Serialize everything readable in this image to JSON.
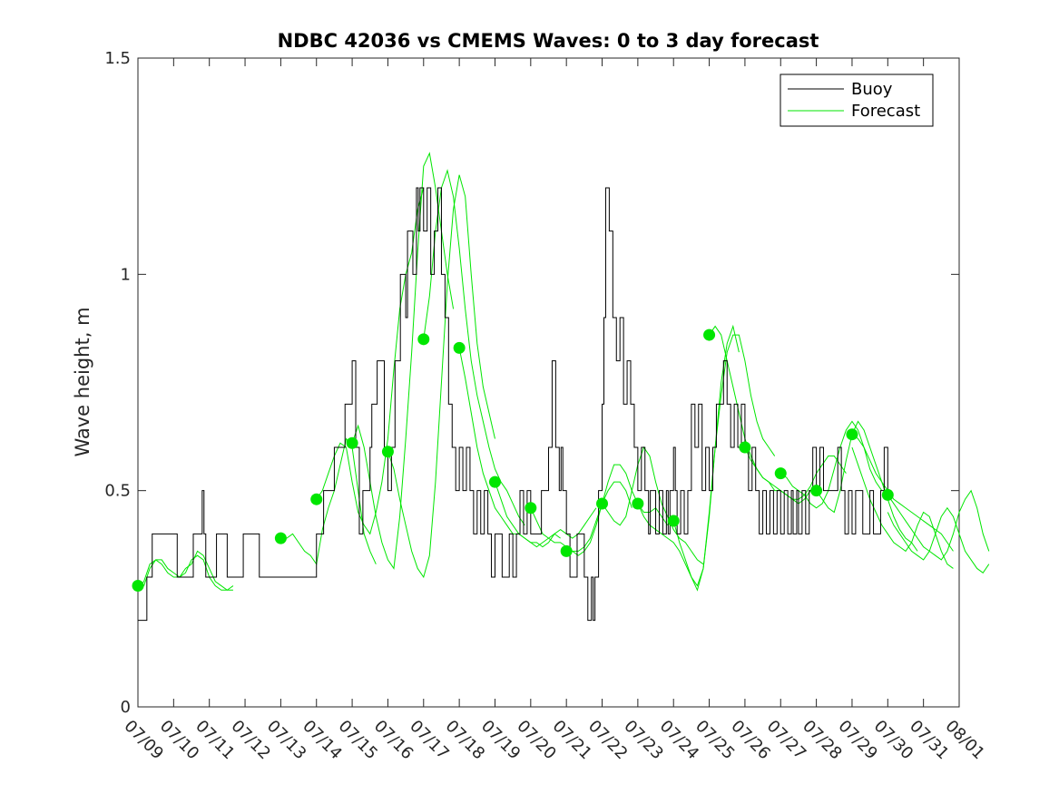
{
  "chart_data": {
    "type": "line",
    "title": "NDBC 42036 vs CMEMS Waves: 0 to 3 day forecast",
    "xlabel": "",
    "ylabel": "Wave height, m",
    "xlim": [
      "07/09",
      "08/01"
    ],
    "ylim": [
      0,
      1.5
    ],
    "x_tick_labels": [
      "07/09",
      "07/10",
      "07/11",
      "07/12",
      "07/13",
      "07/14",
      "07/15",
      "07/16",
      "07/17",
      "07/18",
      "07/19",
      "07/20",
      "07/21",
      "07/22",
      "07/23",
      "07/24",
      "07/25",
      "07/26",
      "07/27",
      "07/28",
      "07/29",
      "07/30",
      "07/31",
      "08/01"
    ],
    "y_ticks": [
      0,
      0.5,
      1,
      1.5
    ],
    "y_tick_labels": [
      "0",
      "0.5",
      "1",
      "1.5"
    ],
    "grid": false,
    "legend_position": "top-right",
    "legend": [
      {
        "label": "Buoy",
        "color": "#000000"
      },
      {
        "label": "Forecast",
        "color": "#00e600"
      }
    ],
    "buoy": {
      "name": "Buoy",
      "color": "#000000",
      "day_offsets": [
        0,
        0.25,
        0.25,
        0.4,
        0.4,
        1.1,
        1.1,
        1.55,
        1.55,
        1.8,
        1.8,
        1.85,
        1.85,
        1.9,
        1.9,
        2.2,
        2.2,
        2.5,
        2.5,
        2.95,
        2.95,
        3.4,
        3.4,
        5.0,
        5.0,
        5.2,
        5.2,
        5.5,
        5.5,
        5.8,
        5.8,
        6.0,
        6.0,
        6.1,
        6.1,
        6.2,
        6.2,
        6.3,
        6.3,
        6.5,
        6.5,
        6.55,
        6.55,
        6.7,
        6.7,
        6.9,
        6.9,
        7.0,
        7.0,
        7.1,
        7.1,
        7.2,
        7.2,
        7.35,
        7.35,
        7.5,
        7.5,
        7.55,
        7.55,
        7.7,
        7.7,
        7.8,
        7.8,
        7.85,
        7.85,
        7.9,
        7.9,
        8.0,
        8.0,
        8.1,
        8.1,
        8.2,
        8.2,
        8.3,
        8.3,
        8.4,
        8.4,
        8.5,
        8.5,
        8.6,
        8.6,
        8.7,
        8.7,
        8.8,
        8.8,
        8.9,
        8.9,
        9.0,
        9.0,
        9.1,
        9.1,
        9.2,
        9.2,
        9.3,
        9.3,
        9.4,
        9.4,
        9.5,
        9.5,
        9.6,
        9.6,
        9.7,
        9.7,
        9.8,
        9.8,
        9.9,
        9.9,
        10.0,
        10.0,
        10.2,
        10.2,
        10.4,
        10.4,
        10.5,
        10.5,
        10.6,
        10.6,
        10.7,
        10.7,
        10.8,
        10.8,
        10.9,
        10.9,
        11.0,
        11.0,
        11.3,
        11.3,
        11.5,
        11.5,
        11.6,
        11.6,
        11.7,
        11.7,
        11.8,
        11.8,
        11.85,
        11.85,
        11.9,
        11.9,
        12.0,
        12.0,
        12.1,
        12.1,
        12.3,
        12.3,
        12.5,
        12.5,
        12.6,
        12.6,
        12.7,
        12.7,
        12.75,
        12.75,
        12.8,
        12.8,
        12.9,
        12.9,
        13.0,
        13.0,
        13.05,
        13.05,
        13.1,
        13.1,
        13.2,
        13.2,
        13.3,
        13.3,
        13.4,
        13.4,
        13.5,
        13.5,
        13.6,
        13.6,
        13.7,
        13.7,
        13.8,
        13.8,
        13.9,
        13.9,
        14.0,
        14.0,
        14.1,
        14.1,
        14.2,
        14.2,
        14.3,
        14.3,
        14.35,
        14.35,
        14.5,
        14.5,
        14.6,
        14.6,
        14.7,
        14.7,
        14.8,
        14.8,
        14.85,
        14.85,
        14.9,
        14.9,
        15.0,
        15.0,
        15.05,
        15.05,
        15.1,
        15.1,
        15.2,
        15.2,
        15.3,
        15.3,
        15.4,
        15.4,
        15.5,
        15.5,
        15.6,
        15.6,
        15.7,
        15.7,
        15.8,
        15.8,
        15.9,
        15.9,
        16.0,
        16.0,
        16.1,
        16.1,
        16.2,
        16.2,
        16.4,
        16.4,
        16.5,
        16.5,
        16.6,
        16.6,
        16.7,
        16.7,
        16.8,
        16.8,
        16.9,
        16.9,
        17.0,
        17.0,
        17.1,
        17.1,
        17.2,
        17.2,
        17.3,
        17.3,
        17.4,
        17.4,
        17.5,
        17.5,
        17.6,
        17.6,
        17.7,
        17.7,
        17.8,
        17.8,
        17.9,
        17.9,
        18.0,
        18.0,
        18.1,
        18.1,
        18.2,
        18.2,
        18.3,
        18.3,
        18.35,
        18.35,
        18.45,
        18.45,
        18.5,
        18.5,
        18.6,
        18.6,
        18.7,
        18.7,
        18.8,
        18.8,
        18.9,
        18.9,
        19.0,
        19.0,
        19.1,
        19.1,
        19.2,
        19.2,
        19.4,
        19.4,
        19.6,
        19.6,
        19.7,
        19.7,
        19.8,
        19.8,
        19.9,
        19.9,
        20.0,
        20.0,
        20.1,
        20.1,
        20.3,
        20.3,
        20.5,
        20.5,
        20.6,
        20.6,
        20.8,
        20.8,
        20.9,
        20.9,
        21.0,
        21.0,
        21.1,
        21.1,
        21.2,
        21.2,
        21.3,
        21.3,
        21.4,
        21.4,
        21.5,
        21.5,
        21.6,
        21.6,
        22.0,
        22.0,
        22.2,
        22.2,
        22.3,
        22.3,
        22.6,
        22.6,
        23.0
      ],
      "values": [
        0.2,
        0.2,
        0.3,
        0.3,
        0.4,
        0.4,
        0.3,
        0.3,
        0.4,
        0.4,
        0.5,
        0.5,
        0.4,
        0.4,
        0.3,
        0.3,
        0.4,
        0.4,
        0.3,
        0.3,
        0.4,
        0.4,
        0.3,
        0.3,
        0.4,
        0.4,
        0.5,
        0.5,
        0.6,
        0.6,
        0.7,
        0.7,
        0.8,
        0.8,
        0.6,
        0.6,
        0.4,
        0.4,
        0.5,
        0.5,
        0.6,
        0.6,
        0.7,
        0.7,
        0.8,
        0.8,
        0.6,
        0.6,
        0.5,
        0.5,
        0.6,
        0.6,
        0.8,
        0.8,
        1.0,
        1.0,
        0.9,
        0.9,
        1.1,
        1.1,
        1.0,
        1.0,
        1.2,
        1.2,
        1.1,
        1.1,
        1.2,
        1.2,
        1.1,
        1.1,
        1.2,
        1.2,
        1.0,
        1.0,
        1.1,
        1.1,
        1.2,
        1.2,
        1.0,
        1.0,
        0.9,
        0.9,
        0.7,
        0.7,
        0.6,
        0.6,
        0.5,
        0.5,
        0.6,
        0.6,
        0.5,
        0.5,
        0.6,
        0.6,
        0.5,
        0.5,
        0.4,
        0.4,
        0.5,
        0.5,
        0.4,
        0.4,
        0.5,
        0.5,
        0.4,
        0.4,
        0.3,
        0.3,
        0.4,
        0.4,
        0.3,
        0.3,
        0.4,
        0.4,
        0.3,
        0.3,
        0.4,
        0.4,
        0.5,
        0.5,
        0.4,
        0.4,
        0.5,
        0.5,
        0.4,
        0.4,
        0.5,
        0.5,
        0.6,
        0.6,
        0.8,
        0.8,
        0.6,
        0.6,
        0.5,
        0.5,
        0.6,
        0.6,
        0.5,
        0.5,
        0.4,
        0.4,
        0.3,
        0.3,
        0.4,
        0.4,
        0.3,
        0.3,
        0.2,
        0.2,
        0.3,
        0.3,
        0.2,
        0.2,
        0.3,
        0.3,
        0.5,
        0.5,
        0.7,
        0.7,
        0.9,
        0.9,
        1.2,
        1.2,
        1.1,
        1.1,
        0.9,
        0.9,
        0.8,
        0.8,
        0.9,
        0.9,
        0.7,
        0.7,
        0.8,
        0.8,
        0.7,
        0.7,
        0.6,
        0.6,
        0.5,
        0.5,
        0.6,
        0.6,
        0.5,
        0.5,
        0.4,
        0.4,
        0.5,
        0.5,
        0.4,
        0.4,
        0.5,
        0.5,
        0.4,
        0.4,
        0.5,
        0.5,
        0.4,
        0.4,
        0.5,
        0.5,
        0.6,
        0.6,
        0.5,
        0.5,
        0.4,
        0.4,
        0.5,
        0.5,
        0.4,
        0.4,
        0.5,
        0.5,
        0.7,
        0.7,
        0.6,
        0.6,
        0.7,
        0.7,
        0.5,
        0.5,
        0.6,
        0.6,
        0.5,
        0.5,
        0.6,
        0.6,
        0.7,
        0.7,
        0.8,
        0.8,
        0.7,
        0.7,
        0.6,
        0.6,
        0.7,
        0.7,
        0.6,
        0.6,
        0.7,
        0.7,
        0.6,
        0.6,
        0.5,
        0.5,
        0.6,
        0.6,
        0.5,
        0.5,
        0.4,
        0.4,
        0.5,
        0.5,
        0.4,
        0.4,
        0.5,
        0.5,
        0.4,
        0.4,
        0.5,
        0.5,
        0.4,
        0.4,
        0.5,
        0.5,
        0.4,
        0.4,
        0.5,
        0.5,
        0.4,
        0.4,
        0.5,
        0.5,
        0.4,
        0.4,
        0.5,
        0.5,
        0.4,
        0.4,
        0.5,
        0.5,
        0.6,
        0.6,
        0.5,
        0.5,
        0.6,
        0.6,
        0.5,
        0.5,
        0.5,
        0.5,
        0.6,
        0.6,
        0.5,
        0.5,
        0.4,
        0.4,
        0.5,
        0.5,
        0.4,
        0.4,
        0.5,
        0.5,
        0.4,
        0.4,
        0.5,
        0.5,
        0.4,
        0.4,
        0.5,
        0.5,
        0.6,
        0.6,
        0.5,
        0.5,
        0.5
      ]
    },
    "forecast_series": [
      {
        "name": "Forecast",
        "color": "#00e600",
        "start_day": 0,
        "values": [
          0.27,
          0.29,
          0.33,
          0.34,
          0.33,
          0.31,
          0.3,
          0.3,
          0.31,
          0.34,
          0.35,
          0.34,
          0.3,
          0.28,
          0.27,
          0.27,
          0.27
        ]
      },
      {
        "color": "#00e600",
        "start_day": 0,
        "values": [
          0.27,
          0.28,
          0.32,
          0.34,
          0.34,
          0.32,
          0.31,
          0.3,
          0.32,
          0.33,
          0.36,
          0.35,
          0.32,
          0.29,
          0.28,
          0.27,
          0.28
        ]
      },
      {
        "color": "#00e600",
        "start_day": 4,
        "values": [
          0.39,
          0.39,
          0.4,
          0.38,
          0.36,
          0.35,
          0.33,
          0.41,
          0.46,
          0.5,
          0.56,
          0.62,
          0.6,
          0.5,
          0.4,
          0.36,
          0.33
        ]
      },
      {
        "color": "#00e600",
        "start_day": 5,
        "values": [
          0.48,
          0.5,
          0.54,
          0.58,
          0.61,
          0.6,
          0.52,
          0.45,
          0.42,
          0.4,
          0.45,
          0.52,
          0.62,
          0.78,
          0.92,
          1.0,
          1.05,
          1.15,
          1.2
        ]
      },
      {
        "color": "#00e600",
        "start_day": 6,
        "values": [
          0.61,
          0.65,
          0.6,
          0.52,
          0.44,
          0.38,
          0.34,
          0.32,
          0.44,
          0.62,
          0.82,
          1.05,
          1.25,
          1.28,
          1.2,
          1.1,
          1.0,
          0.92
        ]
      },
      {
        "color": "#00e600",
        "start_day": 7,
        "values": [
          0.59,
          0.55,
          0.48,
          0.42,
          0.36,
          0.32,
          0.3,
          0.35,
          0.52,
          0.75,
          0.98,
          1.15,
          1.23,
          1.18,
          1.0,
          0.84,
          0.74,
          0.68,
          0.62
        ]
      },
      {
        "color": "#00e600",
        "start_day": 8,
        "values": [
          0.85,
          0.95,
          1.1,
          1.2,
          1.24,
          1.18,
          1.06,
          0.92,
          0.8,
          0.72,
          0.66,
          0.6,
          0.55,
          0.52,
          0.5,
          0.47,
          0.44,
          0.42
        ]
      },
      {
        "color": "#00e600",
        "start_day": 9,
        "values": [
          0.83,
          0.76,
          0.68,
          0.6,
          0.54,
          0.5,
          0.46,
          0.44,
          0.42,
          0.4,
          0.4,
          0.39,
          0.38,
          0.38,
          0.37,
          0.38,
          0.4,
          0.39
        ]
      },
      {
        "color": "#00e600",
        "start_day": 10,
        "values": [
          0.52,
          0.48,
          0.44,
          0.42,
          0.4,
          0.39,
          0.38,
          0.37,
          0.38,
          0.39,
          0.4,
          0.41,
          0.4,
          0.39,
          0.4,
          0.42,
          0.44,
          0.46
        ]
      },
      {
        "color": "#00e600",
        "start_day": 11,
        "values": [
          0.46,
          0.43,
          0.4,
          0.39,
          0.38,
          0.38,
          0.37,
          0.36,
          0.36,
          0.37,
          0.39,
          0.43,
          0.47,
          0.5,
          0.52,
          0.52,
          0.5,
          0.46
        ]
      },
      {
        "color": "#00e600",
        "start_day": 12,
        "values": [
          0.36,
          0.36,
          0.35,
          0.36,
          0.38,
          0.42,
          0.47,
          0.52,
          0.56,
          0.56,
          0.54,
          0.5,
          0.47,
          0.45,
          0.45,
          0.46,
          0.44,
          0.42
        ]
      },
      {
        "color": "#00e600",
        "start_day": 13,
        "values": [
          0.47,
          0.45,
          0.43,
          0.42,
          0.44,
          0.5,
          0.56,
          0.6,
          0.58,
          0.52,
          0.47,
          0.44,
          0.41,
          0.39,
          0.38,
          0.36,
          0.34,
          0.33
        ]
      },
      {
        "color": "#00e600",
        "start_day": 14,
        "values": [
          0.47,
          0.44,
          0.42,
          0.41,
          0.4,
          0.39,
          0.38,
          0.36,
          0.33,
          0.3,
          0.28,
          0.32,
          0.44,
          0.6,
          0.75,
          0.84,
          0.88,
          0.82
        ]
      },
      {
        "color": "#00e600",
        "start_day": 15,
        "values": [
          0.43,
          0.38,
          0.34,
          0.3,
          0.27,
          0.32,
          0.45,
          0.6,
          0.72,
          0.82,
          0.86,
          0.86,
          0.8,
          0.72,
          0.66,
          0.62,
          0.6,
          0.58
        ]
      },
      {
        "color": "#00e600",
        "start_day": 16,
        "values": [
          0.86,
          0.88,
          0.86,
          0.8,
          0.74,
          0.68,
          0.62,
          0.58,
          0.55,
          0.53,
          0.52,
          0.5,
          0.5,
          0.49,
          0.48,
          0.47,
          0.48,
          0.5
        ]
      },
      {
        "color": "#00e600",
        "start_day": 17,
        "values": [
          0.6,
          0.57,
          0.55,
          0.53,
          0.52,
          0.51,
          0.5,
          0.49,
          0.48,
          0.48,
          0.49,
          0.51,
          0.54,
          0.56,
          0.58,
          0.58,
          0.56,
          0.54
        ]
      },
      {
        "color": "#00e600",
        "start_day": 18,
        "values": [
          0.54,
          0.53,
          0.51,
          0.5,
          0.49,
          0.47,
          0.46,
          0.47,
          0.5,
          0.55,
          0.6,
          0.64,
          0.66,
          0.64,
          0.6,
          0.55,
          0.52,
          0.5
        ]
      },
      {
        "color": "#00e600",
        "start_day": 19,
        "values": [
          0.5,
          0.48,
          0.46,
          0.45,
          0.5,
          0.57,
          0.63,
          0.66,
          0.64,
          0.6,
          0.56,
          0.52,
          0.48,
          0.44,
          0.41,
          0.39,
          0.38,
          0.36
        ]
      },
      {
        "color": "#00e600",
        "start_day": 20,
        "values": [
          0.63,
          0.62,
          0.6,
          0.57,
          0.54,
          0.52,
          0.5,
          0.48,
          0.47,
          0.46,
          0.45,
          0.44,
          0.43,
          0.42,
          0.41,
          0.4,
          0.38,
          0.36
        ]
      },
      {
        "color": "#00e600",
        "start_day": 21,
        "values": [
          0.49,
          0.47,
          0.45,
          0.43,
          0.41,
          0.39,
          0.37,
          0.36,
          0.35,
          0.34,
          0.36,
          0.4,
          0.45,
          0.48,
          0.5,
          0.46,
          0.4,
          0.36
        ]
      },
      {
        "color": "#00e600",
        "start_day": 20,
        "values": [
          0.6,
          0.56,
          0.52,
          0.48,
          0.45,
          0.42,
          0.4,
          0.38,
          0.37,
          0.36,
          0.38,
          0.42,
          0.45,
          0.44,
          0.4,
          0.36,
          0.33,
          0.32
        ]
      },
      {
        "color": "#00e600",
        "start_day": 21,
        "values": [
          0.45,
          0.42,
          0.4,
          0.38,
          0.36,
          0.35,
          0.34,
          0.36,
          0.4,
          0.44,
          0.46,
          0.44,
          0.4,
          0.36,
          0.34,
          0.32,
          0.31,
          0.33
        ]
      }
    ],
    "forecast_markers": {
      "color": "#00e600",
      "day_offsets": [
        0,
        4,
        5,
        6,
        7,
        8,
        9,
        10,
        11,
        12,
        13,
        14,
        15,
        16,
        17,
        18,
        19,
        20,
        21
      ],
      "values": [
        0.28,
        0.39,
        0.48,
        0.61,
        0.59,
        0.85,
        0.83,
        0.52,
        0.46,
        0.36,
        0.47,
        0.47,
        0.43,
        0.86,
        0.6,
        0.54,
        0.5,
        0.63,
        0.49
      ]
    }
  }
}
